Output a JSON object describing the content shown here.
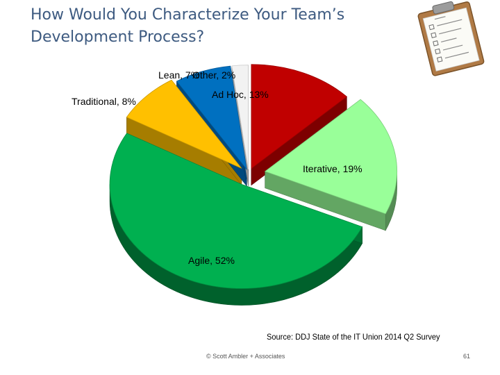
{
  "title": {
    "line1": "How Would You Characterize Your Team’s",
    "line2": "Development Process?"
  },
  "chart_data": {
    "type": "pie",
    "title": "How Would You Characterize Your Team’s Development Process?",
    "slices": [
      {
        "label": "Ad Hoc",
        "value": 13,
        "display": "Ad Hoc, 13%",
        "color": "#c00000"
      },
      {
        "label": "Iterative",
        "value": 19,
        "display": "Iterative, 19%",
        "color": "#99ff99"
      },
      {
        "label": "Agile",
        "value": 52,
        "display": "Agile, 52%",
        "color": "#00b050"
      },
      {
        "label": "Traditional",
        "value": 8,
        "display": "Traditional, 8%",
        "color": "#ffc000"
      },
      {
        "label": "Lean",
        "value": 7,
        "display": "Lean, 7%",
        "color": "#0070c0"
      },
      {
        "label": "Other",
        "value": 2,
        "display": "Other, 2%",
        "color": "#f2f2f2"
      }
    ],
    "exploded": true,
    "three_d": true
  },
  "source": "Source: DDJ State of the IT Union 2014 Q2 Survey",
  "footer": "© Scott Ambler + Associates",
  "page_number": "61",
  "icons": {
    "clipboard": "clipboard-checklist-icon"
  }
}
